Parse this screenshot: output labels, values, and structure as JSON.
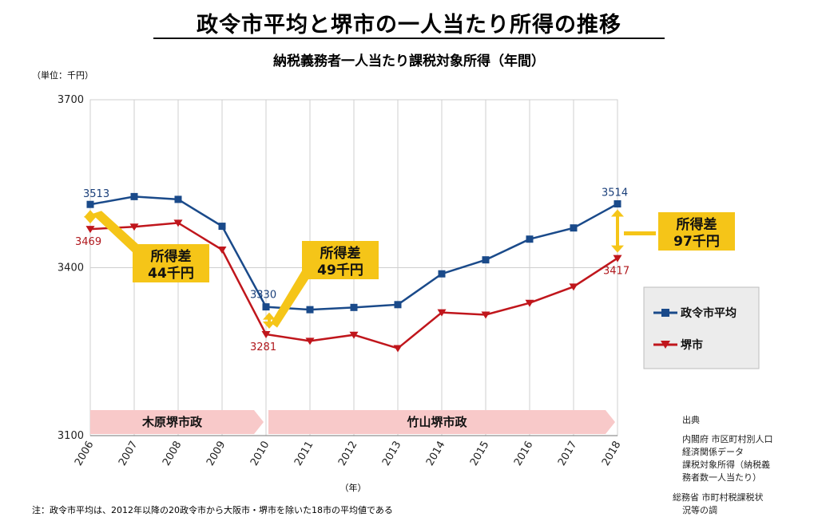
{
  "title": "政令市平均と堺市の一人当たり所得の推移",
  "subtitle": "納税義務者一人当たり課税対象所得（年間）",
  "unit_label": "（単位：千円）",
  "x_axis_label": "（年）",
  "note": "注：政令市平均は、2012年以降の20政令市から大阪市・堺市を除いた18市の平均値である",
  "source": {
    "heading": "出典",
    "line1": "内閣府 市区町村別人口",
    "line2": "経済関係データ",
    "line3": "課税対象所得（納税義",
    "line4": "務者数一人当たり）",
    "line5": "総務省 市町村税課税状",
    "line6": "況等の調"
  },
  "legend": {
    "series1": "政令市平均",
    "series2": "堺市"
  },
  "eras": [
    {
      "label": "木原堺市政",
      "start": "2006",
      "end": "2010"
    },
    {
      "label": "竹山堺市政",
      "start": "2010",
      "end": "2018"
    }
  ],
  "callouts": [
    {
      "line1": "所得差",
      "line2": "44千円",
      "year": "2006"
    },
    {
      "line1": "所得差",
      "line2": "49千円",
      "year": "2010"
    },
    {
      "line1": "所得差",
      "line2": "97千円",
      "year": "2018"
    }
  ],
  "colors": {
    "series1": "#1a4a8a",
    "series2": "#c0161c",
    "callout": "#f5c518",
    "era": "#f8c9c9",
    "grid": "#cfcfcf",
    "legend_bg": "#ececec"
  },
  "chart_data": {
    "type": "line",
    "x": [
      "2006",
      "2007",
      "2008",
      "2009",
      "2010",
      "2011",
      "2012",
      "2013",
      "2014",
      "2015",
      "2016",
      "2017",
      "2018"
    ],
    "ylim": [
      3100,
      3700
    ],
    "yticks": [
      3100,
      3400,
      3700
    ],
    "series": [
      {
        "name": "政令市平均",
        "marker": "square",
        "values": [
          3513,
          3527,
          3522,
          3474,
          3330,
          3325,
          3329,
          3334,
          3389,
          3414,
          3451,
          3471,
          3514
        ],
        "labels": {
          "0": "3513",
          "4": "3330",
          "12": "3514"
        }
      },
      {
        "name": "堺市",
        "marker": "triangle-down",
        "values": [
          3469,
          3473,
          3480,
          3432,
          3281,
          3269,
          3280,
          3256,
          3320,
          3316,
          3337,
          3366,
          3417
        ],
        "labels": {
          "0": "3469",
          "4": "3281",
          "12": "3417"
        }
      }
    ]
  }
}
